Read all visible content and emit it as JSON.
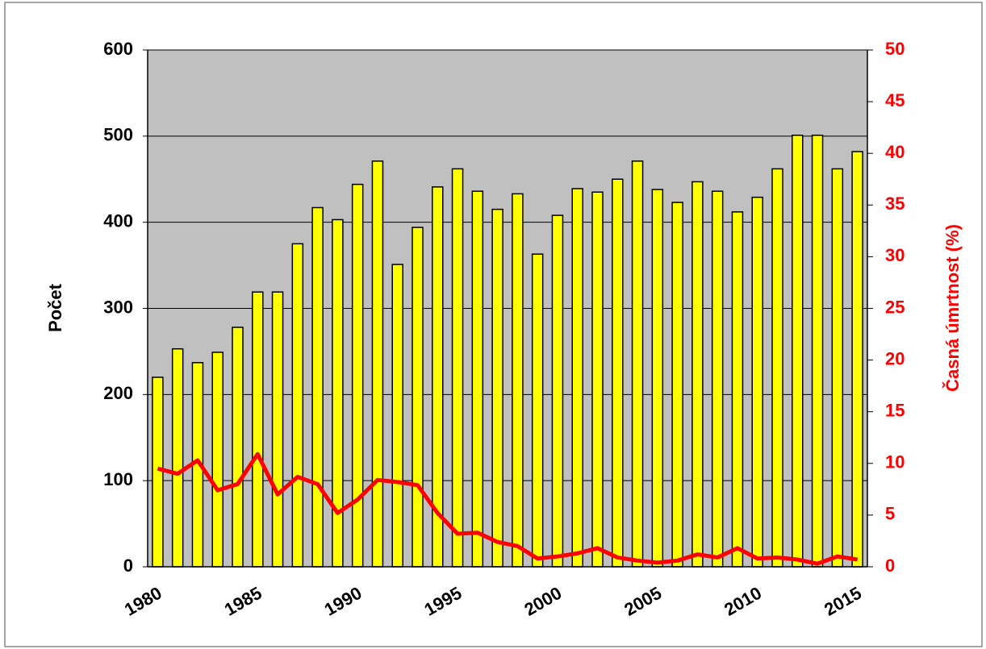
{
  "chart_data": {
    "type": "bar",
    "y_label": "Počet",
    "y2_label": "Časná úmrtnost (%)",
    "categories": [
      1980,
      null,
      null,
      null,
      null,
      1985,
      null,
      null,
      null,
      null,
      1990,
      null,
      null,
      null,
      null,
      1995,
      null,
      null,
      null,
      null,
      2000,
      null,
      null,
      null,
      null,
      2005,
      null,
      null,
      null,
      null,
      2010,
      null,
      null,
      null,
      null,
      2015
    ],
    "series": [
      {
        "type": "bar",
        "color": "#ffff00",
        "values": [
          220,
          253,
          237,
          249,
          278,
          319,
          319,
          375,
          417,
          403,
          444,
          471,
          351,
          394,
          441,
          462,
          436,
          415,
          433,
          363,
          408,
          439,
          435,
          450,
          471,
          438,
          423,
          447,
          436,
          412,
          429,
          462,
          501,
          501,
          462,
          482
        ]
      },
      {
        "type": "line",
        "color": "#ff0000",
        "axis": "y2",
        "values": [
          9.5,
          9,
          10.3,
          7.4,
          8,
          10.9,
          7,
          8.7,
          8,
          5.2,
          6.5,
          8.4,
          8.2,
          7.9,
          5.2,
          3.2,
          3.3,
          2.4,
          2,
          0.8,
          1,
          1.3,
          1.8,
          0.9,
          0.6,
          0.4,
          0.6,
          1.2,
          0.9,
          1.8,
          0.8,
          0.9,
          0.7,
          0.3,
          1,
          0.7
        ]
      }
    ],
    "ylim": [
      0,
      600
    ],
    "yticks": [
      0,
      100,
      200,
      300,
      400,
      500,
      600
    ],
    "y2lim": [
      0,
      50
    ],
    "y2ticks": [
      0,
      5,
      10,
      15,
      20,
      25,
      30,
      35,
      40,
      45,
      50
    ],
    "y2_color": "#ff0000",
    "plot_background": "#c0c0c0",
    "grid": true
  }
}
